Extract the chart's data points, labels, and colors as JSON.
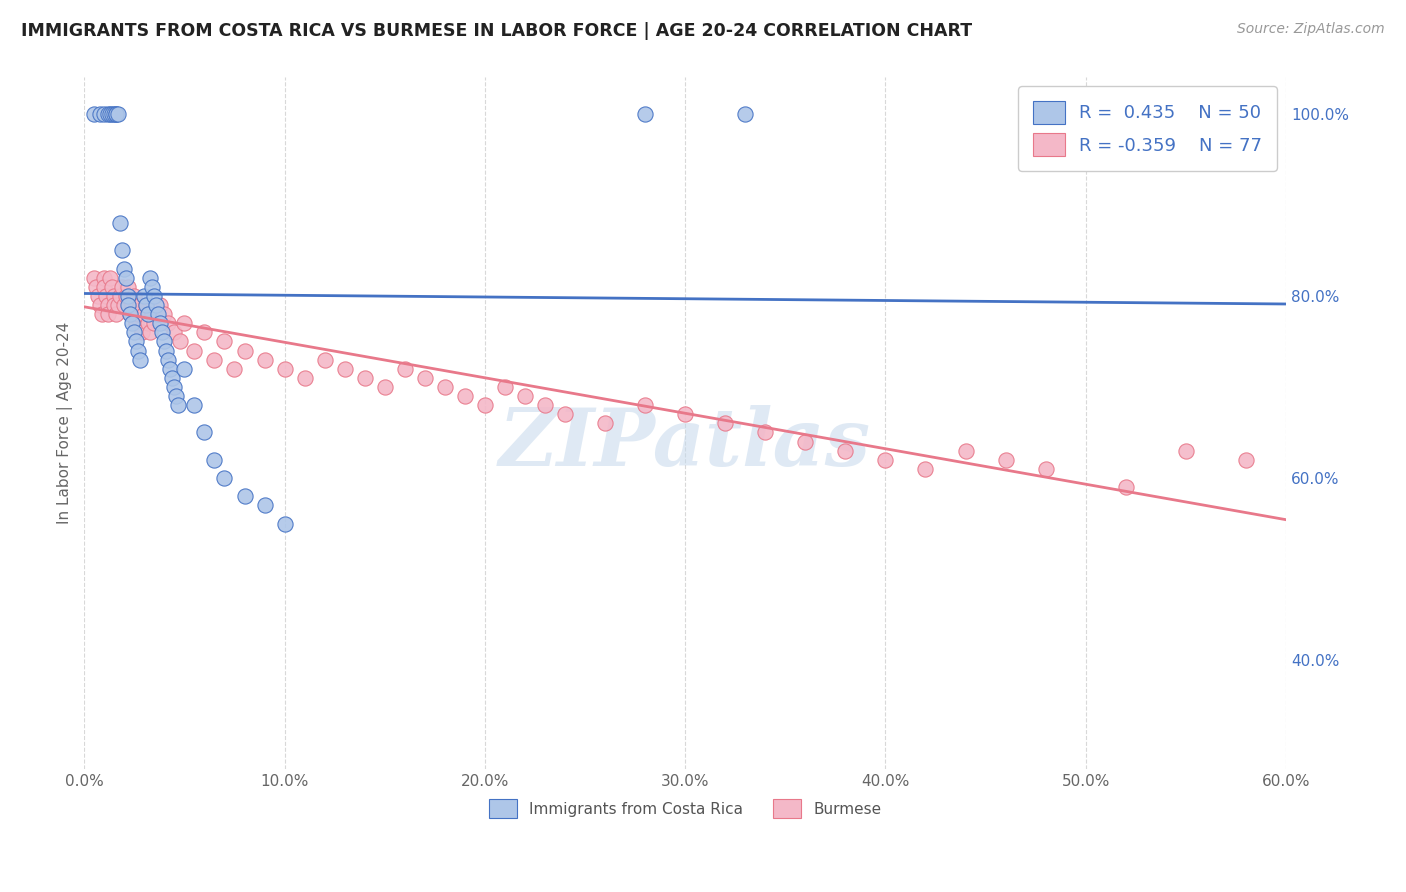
{
  "title": "IMMIGRANTS FROM COSTA RICA VS BURMESE IN LABOR FORCE | AGE 20-24 CORRELATION CHART",
  "source": "Source: ZipAtlas.com",
  "ylabel": "In Labor Force | Age 20-24",
  "x_min": 0.0,
  "x_max": 0.6,
  "y_min": 0.28,
  "y_max": 1.04,
  "x_ticks": [
    0.0,
    0.1,
    0.2,
    0.3,
    0.4,
    0.5,
    0.6
  ],
  "x_tick_labels": [
    "0.0%",
    "10.0%",
    "20.0%",
    "30.0%",
    "40.0%",
    "50.0%",
    "60.0%"
  ],
  "y_ticks_right": [
    0.4,
    0.6,
    0.8,
    1.0
  ],
  "y_tick_labels_right": [
    "40.0%",
    "60.0%",
    "80.0%",
    "100.0%"
  ],
  "color_blue": "#aec6e8",
  "color_blue_edge": "#4472c4",
  "color_blue_line": "#4472c4",
  "color_pink": "#f4b8c8",
  "color_pink_edge": "#e8788a",
  "color_pink_line": "#e8788a",
  "color_text_blue": "#4472c4",
  "legend_R_blue": "0.435",
  "legend_N_blue": "50",
  "legend_R_pink": "-0.359",
  "legend_N_pink": "77",
  "watermark": "ZIPatlas",
  "background_color": "#ffffff",
  "grid_color": "#d8d8d8",
  "blue_scatter_x": [
    0.005,
    0.008,
    0.01,
    0.012,
    0.013,
    0.014,
    0.015,
    0.016,
    0.016,
    0.017,
    0.018,
    0.019,
    0.02,
    0.021,
    0.022,
    0.022,
    0.023,
    0.024,
    0.025,
    0.026,
    0.027,
    0.028,
    0.03,
    0.031,
    0.032,
    0.033,
    0.034,
    0.035,
    0.036,
    0.037,
    0.038,
    0.039,
    0.04,
    0.041,
    0.042,
    0.043,
    0.044,
    0.045,
    0.046,
    0.047,
    0.05,
    0.055,
    0.06,
    0.065,
    0.07,
    0.08,
    0.09,
    0.1,
    0.28,
    0.33
  ],
  "blue_scatter_y": [
    1.0,
    1.0,
    1.0,
    1.0,
    1.0,
    1.0,
    1.0,
    1.0,
    1.0,
    1.0,
    0.88,
    0.85,
    0.83,
    0.82,
    0.8,
    0.79,
    0.78,
    0.77,
    0.76,
    0.75,
    0.74,
    0.73,
    0.8,
    0.79,
    0.78,
    0.82,
    0.81,
    0.8,
    0.79,
    0.78,
    0.77,
    0.76,
    0.75,
    0.74,
    0.73,
    0.72,
    0.71,
    0.7,
    0.69,
    0.68,
    0.72,
    0.68,
    0.65,
    0.62,
    0.6,
    0.58,
    0.57,
    0.55,
    1.0,
    1.0
  ],
  "pink_scatter_x": [
    0.005,
    0.006,
    0.007,
    0.008,
    0.009,
    0.01,
    0.01,
    0.011,
    0.012,
    0.012,
    0.013,
    0.014,
    0.015,
    0.015,
    0.016,
    0.017,
    0.018,
    0.019,
    0.02,
    0.021,
    0.022,
    0.023,
    0.024,
    0.025,
    0.026,
    0.027,
    0.028,
    0.029,
    0.03,
    0.031,
    0.032,
    0.033,
    0.034,
    0.035,
    0.038,
    0.04,
    0.042,
    0.045,
    0.048,
    0.05,
    0.055,
    0.06,
    0.065,
    0.07,
    0.075,
    0.08,
    0.09,
    0.1,
    0.11,
    0.12,
    0.13,
    0.14,
    0.15,
    0.16,
    0.17,
    0.18,
    0.19,
    0.2,
    0.21,
    0.22,
    0.23,
    0.24,
    0.26,
    0.28,
    0.3,
    0.32,
    0.34,
    0.36,
    0.38,
    0.4,
    0.42,
    0.44,
    0.46,
    0.48,
    0.52,
    0.55,
    0.58
  ],
  "pink_scatter_y": [
    0.82,
    0.81,
    0.8,
    0.79,
    0.78,
    0.82,
    0.81,
    0.8,
    0.79,
    0.78,
    0.82,
    0.81,
    0.8,
    0.79,
    0.78,
    0.79,
    0.8,
    0.81,
    0.79,
    0.8,
    0.81,
    0.78,
    0.79,
    0.8,
    0.77,
    0.78,
    0.79,
    0.76,
    0.78,
    0.79,
    0.77,
    0.76,
    0.78,
    0.77,
    0.79,
    0.78,
    0.77,
    0.76,
    0.75,
    0.77,
    0.74,
    0.76,
    0.73,
    0.75,
    0.72,
    0.74,
    0.73,
    0.72,
    0.71,
    0.73,
    0.72,
    0.71,
    0.7,
    0.72,
    0.71,
    0.7,
    0.69,
    0.68,
    0.7,
    0.69,
    0.68,
    0.67,
    0.66,
    0.68,
    0.67,
    0.66,
    0.65,
    0.64,
    0.63,
    0.62,
    0.61,
    0.63,
    0.62,
    0.61,
    0.59,
    0.63,
    0.62
  ]
}
